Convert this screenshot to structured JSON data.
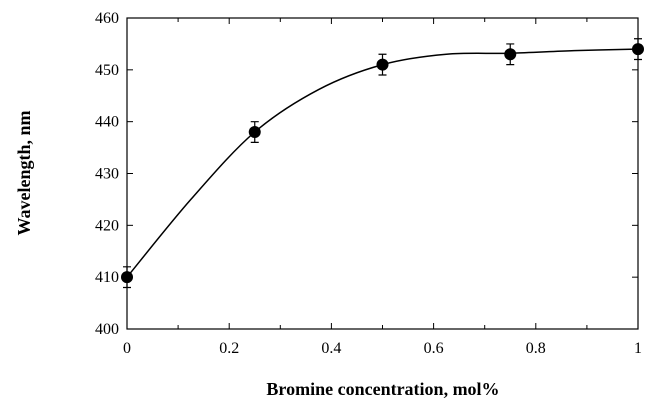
{
  "chart_data": {
    "type": "scatter",
    "x_label": "Bromine concentration, mol%",
    "y_label": "Wavelength, nm",
    "series": [
      {
        "type": "scatter",
        "color": "#000000",
        "x": [
          0,
          0.25,
          0.5,
          0.75,
          1
        ],
        "values": [
          410,
          438,
          451,
          453,
          454
        ],
        "errors": [
          2,
          2,
          2,
          2,
          2
        ]
      },
      {
        "type": "line",
        "color": "#000000",
        "x": [
          0,
          0.125,
          0.25,
          0.375,
          0.5,
          0.625,
          0.75,
          0.875,
          1
        ],
        "values": [
          410,
          425,
          438,
          446.2,
          451,
          453,
          453.2,
          453.7,
          454
        ]
      }
    ],
    "xlim": [
      0,
      1
    ],
    "xticks": [
      0,
      0.2,
      0.4,
      0.6,
      0.8,
      1
    ],
    "xminorticks": [
      0.1,
      0.3,
      0.5,
      0.7,
      0.9
    ],
    "ylim": [
      400,
      460
    ],
    "yticks": [
      400,
      410,
      420,
      430,
      440,
      450,
      460
    ]
  }
}
